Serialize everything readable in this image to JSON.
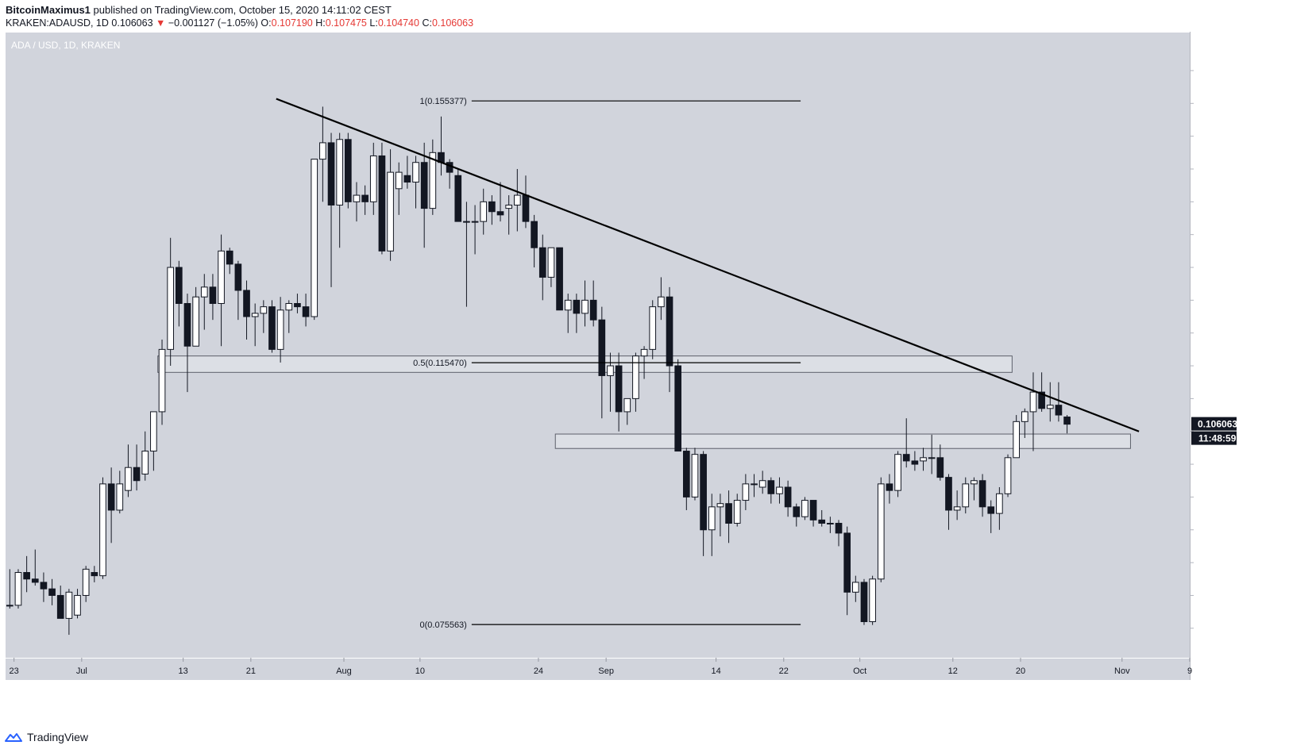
{
  "header": {
    "author": "BitcoinMaximus1",
    "published": "published on TradingView.com, October 15, 2020 14:11:02 CEST",
    "symbol": "KRAKEN:ADAUSD, 1D",
    "last": "0.106063",
    "change": "−0.001127 (−1.05%)",
    "o_label": "O:",
    "o_value": "0.107190",
    "h_label": "H:",
    "h_value": "0.107475",
    "l_label": "L:",
    "l_value": "0.104740",
    "c_label": "C:",
    "c_value": "0.106063"
  },
  "chart_data": {
    "type": "candlestick",
    "title": "ADA / USD, 1D, KRAKEN",
    "currency": "USD",
    "ylim": [
      0.0705,
      0.1658
    ],
    "y_ticks": [
      "0.075000",
      "0.080000",
      "0.085000",
      "0.090000",
      "0.095000",
      "0.100000",
      "0.105000",
      "0.110000",
      "0.115000",
      "0.120000",
      "0.125000",
      "0.130000",
      "0.135000",
      "0.140000",
      "0.145000",
      "0.150000",
      "0.155000",
      "0.160000"
    ],
    "x_ticks": [
      {
        "label": "23",
        "date": "2020-06-23"
      },
      {
        "label": "Jul",
        "date": "2020-07-01"
      },
      {
        "label": "13",
        "date": "2020-07-13"
      },
      {
        "label": "21",
        "date": "2020-07-21"
      },
      {
        "label": "Aug",
        "date": "2020-08-01"
      },
      {
        "label": "10",
        "date": "2020-08-10"
      },
      {
        "label": "24",
        "date": "2020-08-24"
      },
      {
        "label": "Sep",
        "date": "2020-09-01"
      },
      {
        "label": "14",
        "date": "2020-09-14"
      },
      {
        "label": "22",
        "date": "2020-09-22"
      },
      {
        "label": "Oct",
        "date": "2020-10-01"
      },
      {
        "label": "12",
        "date": "2020-10-12"
      },
      {
        "label": "20",
        "date": "2020-10-20"
      },
      {
        "label": "Nov",
        "date": "2020-11-01"
      },
      {
        "label": "9",
        "date": "2020-11-09"
      }
    ],
    "date_range": [
      "2020-06-22",
      "2020-11-09"
    ],
    "grid": false,
    "candle_dates": [
      "2020-06-22",
      "2020-10-15"
    ],
    "candles": [
      [
        0.0785,
        0.084,
        0.078,
        0.0785
      ],
      [
        0.0785,
        0.084,
        0.078,
        0.0835
      ],
      [
        0.0835,
        0.086,
        0.0805,
        0.0825
      ],
      [
        0.0825,
        0.087,
        0.0815,
        0.082
      ],
      [
        0.082,
        0.0835,
        0.079,
        0.081
      ],
      [
        0.081,
        0.0825,
        0.0785,
        0.08
      ],
      [
        0.08,
        0.0815,
        0.0765,
        0.0765
      ],
      [
        0.0765,
        0.081,
        0.074,
        0.0805
      ],
      [
        0.077,
        0.081,
        0.0765,
        0.08
      ],
      [
        0.08,
        0.0845,
        0.079,
        0.084
      ],
      [
        0.0835,
        0.0845,
        0.082,
        0.083
      ],
      [
        0.083,
        0.098,
        0.0825,
        0.097
      ],
      [
        0.097,
        0.0995,
        0.088,
        0.093
      ],
      [
        0.093,
        0.099,
        0.0925,
        0.097
      ],
      [
        0.096,
        0.103,
        0.095,
        0.0995
      ],
      [
        0.0995,
        0.103,
        0.096,
        0.0975
      ],
      [
        0.0985,
        0.105,
        0.0975,
        0.102
      ],
      [
        0.102,
        0.108,
        0.099,
        0.108
      ],
      [
        0.108,
        0.119,
        0.106,
        0.1175
      ],
      [
        0.1175,
        0.1345,
        0.115,
        0.13
      ],
      [
        0.13,
        0.131,
        0.121,
        0.1245
      ],
      [
        0.1245,
        0.126,
        0.111,
        0.118
      ],
      [
        0.118,
        0.127,
        0.118,
        0.1255
      ],
      [
        0.1255,
        0.129,
        0.1205,
        0.127
      ],
      [
        0.127,
        0.129,
        0.122,
        0.1245
      ],
      [
        0.1245,
        0.135,
        0.118,
        0.1325
      ],
      [
        0.1325,
        0.133,
        0.129,
        0.1305
      ],
      [
        0.1305,
        0.131,
        0.122,
        0.1265
      ],
      [
        0.1265,
        0.128,
        0.119,
        0.1225
      ],
      [
        0.1225,
        0.1245,
        0.118,
        0.123
      ],
      [
        0.123,
        0.125,
        0.12,
        0.124
      ],
      [
        0.124,
        0.125,
        0.117,
        0.1175
      ],
      [
        0.1175,
        0.1255,
        0.1155,
        0.1235
      ],
      [
        0.1235,
        0.125,
        0.12,
        0.1245
      ],
      [
        0.1245,
        0.126,
        0.123,
        0.124
      ],
      [
        0.124,
        0.126,
        0.121,
        0.1225
      ],
      [
        0.1225,
        0.1465,
        0.122,
        0.1465
      ],
      [
        0.1465,
        0.1545,
        0.14,
        0.149
      ],
      [
        0.149,
        0.1505,
        0.127,
        0.1395
      ],
      [
        0.1395,
        0.1505,
        0.133,
        0.1495
      ],
      [
        0.1495,
        0.1505,
        0.139,
        0.14
      ],
      [
        0.14,
        0.143,
        0.137,
        0.141
      ],
      [
        0.141,
        0.1425,
        0.138,
        0.14
      ],
      [
        0.14,
        0.149,
        0.138,
        0.147
      ],
      [
        0.147,
        0.149,
        0.132,
        0.1325
      ],
      [
        0.1325,
        0.148,
        0.131,
        0.1445
      ],
      [
        0.142,
        0.146,
        0.138,
        0.1445
      ],
      [
        0.144,
        0.147,
        0.142,
        0.143
      ],
      [
        0.143,
        0.147,
        0.139,
        0.146
      ],
      [
        0.146,
        0.149,
        0.133,
        0.139
      ],
      [
        0.139,
        0.1495,
        0.138,
        0.1475
      ],
      [
        0.1475,
        0.153,
        0.144,
        0.146
      ],
      [
        0.146,
        0.1465,
        0.142,
        0.1445
      ],
      [
        0.144,
        0.145,
        0.137,
        0.137
      ],
      [
        0.137,
        0.14,
        0.124,
        0.137
      ],
      [
        0.137,
        0.1395,
        0.132,
        0.137
      ],
      [
        0.137,
        0.142,
        0.135,
        0.14
      ],
      [
        0.14,
        0.141,
        0.1365,
        0.1385
      ],
      [
        0.1385,
        0.143,
        0.137,
        0.138
      ],
      [
        0.139,
        0.141,
        0.135,
        0.1395
      ],
      [
        0.1395,
        0.145,
        0.1355,
        0.141
      ],
      [
        0.141,
        0.144,
        0.136,
        0.137
      ],
      [
        0.137,
        0.138,
        0.13,
        0.133
      ],
      [
        0.133,
        0.135,
        0.125,
        0.1285
      ],
      [
        0.1285,
        0.133,
        0.127,
        0.133
      ],
      [
        0.133,
        0.133,
        0.1235,
        0.1235
      ],
      [
        0.1235,
        0.126,
        0.12,
        0.125
      ],
      [
        0.125,
        0.126,
        0.12,
        0.123
      ],
      [
        0.123,
        0.128,
        0.121,
        0.125
      ],
      [
        0.125,
        0.128,
        0.121,
        0.122
      ],
      [
        0.122,
        0.124,
        0.107,
        0.1135
      ],
      [
        0.1135,
        0.117,
        0.108,
        0.115
      ],
      [
        0.115,
        0.117,
        0.105,
        0.108
      ],
      [
        0.108,
        0.11,
        0.106,
        0.11
      ],
      [
        0.11,
        0.117,
        0.108,
        0.1165
      ],
      [
        0.1165,
        0.118,
        0.113,
        0.1175
      ],
      [
        0.1175,
        0.125,
        0.116,
        0.124
      ],
      [
        0.124,
        0.1285,
        0.122,
        0.1255
      ],
      [
        0.1255,
        0.127,
        0.111,
        0.115
      ],
      [
        0.115,
        0.116,
        0.102,
        0.102
      ],
      [
        0.102,
        0.1025,
        0.093,
        0.095
      ],
      [
        0.095,
        0.1025,
        0.0945,
        0.1015
      ],
      [
        0.1015,
        0.102,
        0.086,
        0.09
      ],
      [
        0.09,
        0.0955,
        0.086,
        0.0935
      ],
      [
        0.0935,
        0.0955,
        0.089,
        0.094
      ],
      [
        0.094,
        0.096,
        0.088,
        0.091
      ],
      [
        0.091,
        0.0955,
        0.0905,
        0.0945
      ],
      [
        0.0945,
        0.0985,
        0.093,
        0.097
      ],
      [
        0.097,
        0.0985,
        0.095,
        0.097
      ],
      [
        0.0965,
        0.099,
        0.0955,
        0.0975
      ],
      [
        0.0975,
        0.098,
        0.094,
        0.0955
      ],
      [
        0.0955,
        0.098,
        0.094,
        0.0965
      ],
      [
        0.0965,
        0.0975,
        0.092,
        0.0935
      ],
      [
        0.0935,
        0.094,
        0.0905,
        0.092
      ],
      [
        0.092,
        0.095,
        0.0915,
        0.0945
      ],
      [
        0.0945,
        0.0945,
        0.0905,
        0.0915
      ],
      [
        0.0915,
        0.093,
        0.0905,
        0.091
      ],
      [
        0.091,
        0.092,
        0.0895,
        0.091
      ],
      [
        0.091,
        0.0915,
        0.0875,
        0.0895
      ],
      [
        0.0895,
        0.0905,
        0.077,
        0.0805
      ],
      [
        0.0805,
        0.083,
        0.079,
        0.082
      ],
      [
        0.082,
        0.0825,
        0.0755,
        0.076
      ],
      [
        0.076,
        0.083,
        0.0755,
        0.0825
      ],
      [
        0.0825,
        0.098,
        0.082,
        0.097
      ],
      [
        0.097,
        0.0985,
        0.094,
        0.096
      ],
      [
        0.096,
        0.102,
        0.095,
        0.1015
      ],
      [
        0.1015,
        0.107,
        0.0995,
        0.1005
      ],
      [
        0.1005,
        0.102,
        0.099,
        0.1
      ],
      [
        0.1005,
        0.1025,
        0.099,
        0.101
      ],
      [
        0.101,
        0.1045,
        0.0985,
        0.101
      ],
      [
        0.101,
        0.103,
        0.0975,
        0.098
      ],
      [
        0.098,
        0.0985,
        0.09,
        0.093
      ],
      [
        0.093,
        0.096,
        0.0915,
        0.0935
      ],
      [
        0.0935,
        0.098,
        0.0925,
        0.097
      ],
      [
        0.097,
        0.098,
        0.0945,
        0.0975
      ],
      [
        0.0975,
        0.0985,
        0.092,
        0.0935
      ],
      [
        0.0935,
        0.0945,
        0.0895,
        0.0925
      ],
      [
        0.0925,
        0.0965,
        0.09,
        0.0955
      ],
      [
        0.0955,
        0.1015,
        0.095,
        0.101
      ],
      [
        0.101,
        0.1075,
        0.101,
        0.1065
      ],
      [
        0.1065,
        0.1085,
        0.104,
        0.108
      ],
      [
        0.108,
        0.114,
        0.102,
        0.111
      ],
      [
        0.111,
        0.114,
        0.108,
        0.1085
      ],
      [
        0.1085,
        0.1125,
        0.1065,
        0.109
      ],
      [
        0.109,
        0.1125,
        0.1065,
        0.1075
      ],
      [
        0.1072,
        0.1075,
        0.1047,
        0.1061
      ]
    ],
    "annotations": [
      {
        "type": "fib",
        "label": "1(0.155377)",
        "value": 0.155377,
        "date_from": "2020-08-10",
        "date_to": "2020-09-24"
      },
      {
        "type": "fib",
        "label": "0.5(0.115470)",
        "value": 0.11547,
        "date_from": "2020-08-10",
        "date_to": "2020-09-24"
      },
      {
        "type": "fib",
        "label": "0(0.075563)",
        "value": 0.075563,
        "date_from": "2020-08-10",
        "date_to": "2020-09-24"
      },
      {
        "type": "trendline",
        "from": {
          "date": "2020-07-24",
          "value": 0.1557
        },
        "to": {
          "date": "2020-11-03",
          "value": 0.105
        }
      },
      {
        "type": "zone",
        "from_date": "2020-07-10",
        "to_date": "2020-10-19",
        "low": 0.114,
        "high": 0.1165
      },
      {
        "type": "zone",
        "from_date": "2020-08-26",
        "to_date": "2020-11-02",
        "low": 0.1024,
        "high": 0.1046
      }
    ],
    "last_price_label": "0.106063",
    "countdown_label": "11:48:59"
  },
  "colors": {
    "plot_bg": "#d1d4dc",
    "axis_bg": "#ffffff",
    "up_fill": "#ffffff",
    "down_fill": "#131722",
    "candle_border": "#131722",
    "trend_line": "#000000",
    "zone_stroke": "#5d606b",
    "label_badge": "#131722",
    "header_red": "#e53935"
  },
  "footer": {
    "logo_text": "TradingView"
  }
}
